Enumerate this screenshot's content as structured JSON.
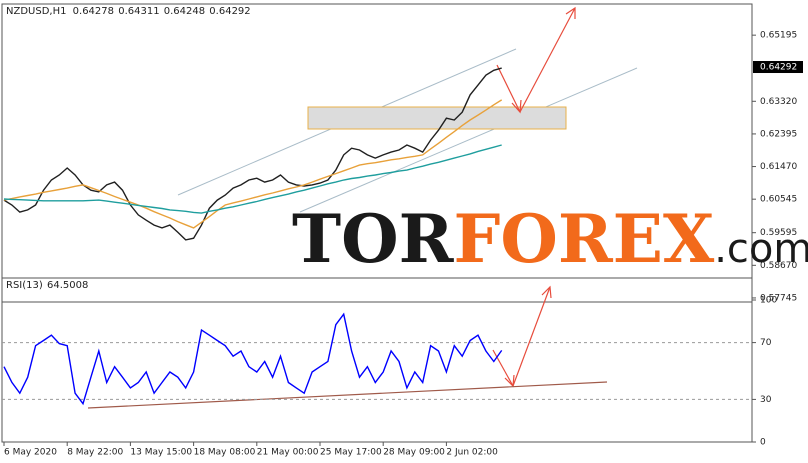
{
  "chart_data": [
    {
      "type": "line",
      "title": "NZDUSD,H1",
      "header_values": [
        0.64278,
        0.64311,
        0.64248,
        0.64292
      ],
      "last_price": 0.64292,
      "watermark": [
        "TOR",
        "FOREX",
        ".com"
      ],
      "categories": [
        "6 May 2020",
        null,
        null,
        null,
        null,
        null,
        null,
        null,
        "8 May 22:00",
        null,
        null,
        null,
        null,
        null,
        null,
        null,
        "13 May 15:00",
        null,
        null,
        null,
        null,
        null,
        null,
        null,
        "18 May 08:00",
        null,
        null,
        null,
        null,
        null,
        null,
        null,
        "21 May 00:00",
        null,
        null,
        null,
        null,
        null,
        null,
        null,
        "25 May 17:00",
        null,
        null,
        null,
        null,
        null,
        null,
        null,
        "28 May 09:00",
        null,
        null,
        null,
        null,
        null,
        null,
        null,
        "2 Jun 02:00",
        null,
        null,
        null,
        null,
        null,
        null,
        null
      ],
      "series": [
        {
          "color": "#202020",
          "values": [
            0.6052,
            0.6038,
            0.6018,
            0.6024,
            0.6038,
            0.608,
            0.6109,
            0.6123,
            0.6143,
            0.6123,
            0.6095,
            0.608,
            0.6075,
            0.6095,
            0.6103,
            0.608,
            0.6038,
            0.601,
            0.5995,
            0.5981,
            0.5973,
            0.5981,
            0.5961,
            0.5939,
            0.5944,
            0.5981,
            0.6029,
            0.6052,
            0.6066,
            0.6086,
            0.6095,
            0.6109,
            0.6114,
            0.6103,
            0.6109,
            0.6123,
            0.6103,
            0.6095,
            0.6092,
            0.6095,
            0.61,
            0.6109,
            0.6137,
            0.618,
            0.6199,
            0.6194,
            0.618,
            0.6171,
            0.618,
            0.6188,
            0.6194,
            0.6208,
            0.6199,
            0.6188,
            0.6222,
            0.625,
            0.6284,
            0.6279,
            0.6301,
            0.635,
            0.6378,
            0.6406,
            0.642,
            0.6426
          ]
        },
        {
          "color": "#e8a13a",
          "values": [
            0.6052,
            0.6056,
            0.6061,
            0.6065,
            0.6069,
            0.6074,
            0.6078,
            0.6082,
            0.6086,
            0.6091,
            0.6095,
            0.6087,
            0.6079,
            0.6071,
            0.6062,
            0.6054,
            0.6046,
            0.6038,
            0.6029,
            0.6019,
            0.601,
            0.6001,
            0.5991,
            0.5982,
            0.5973,
            0.5989,
            0.6005,
            0.6022,
            0.6038,
            0.6044,
            0.6049,
            0.6055,
            0.6061,
            0.6067,
            0.6072,
            0.6078,
            0.6084,
            0.6089,
            0.6095,
            0.6103,
            0.6111,
            0.6119,
            0.6127,
            0.6135,
            0.6143,
            0.6151,
            0.6155,
            0.6158,
            0.6162,
            0.6166,
            0.6169,
            0.6173,
            0.6176,
            0.618,
            0.6197,
            0.6213,
            0.623,
            0.6246,
            0.6263,
            0.6279,
            0.6293,
            0.6307,
            0.6322,
            0.6336
          ]
        },
        {
          "color": "#1f9e9e",
          "values": [
            0.6055,
            0.6054,
            0.6053,
            0.6052,
            0.6051,
            0.605,
            0.605,
            0.605,
            0.605,
            0.605,
            0.605,
            0.6051,
            0.6052,
            0.6049,
            0.6046,
            0.6043,
            0.604,
            0.6037,
            0.6034,
            0.6031,
            0.6028,
            0.6024,
            0.6022,
            0.602,
            0.6017,
            0.6015,
            0.602,
            0.6024,
            0.6029,
            0.6033,
            0.6038,
            0.6043,
            0.6048,
            0.6054,
            0.6059,
            0.6064,
            0.6069,
            0.6075,
            0.608,
            0.6086,
            0.6092,
            0.6098,
            0.6103,
            0.6109,
            0.6113,
            0.6116,
            0.612,
            0.6123,
            0.6127,
            0.613,
            0.6134,
            0.6137,
            0.6143,
            0.6148,
            0.6154,
            0.6159,
            0.6165,
            0.6171,
            0.6177,
            0.6183,
            0.619,
            0.6196,
            0.6202,
            0.6208
          ]
        }
      ],
      "ylim": [
        0.5763,
        0.6605
      ],
      "yticks": [
        0.57745,
        {
          "value": 0.5867,
          "label": "0.58670"
        },
        0.59595,
        0.60545,
        {
          "value": 0.6147,
          "label": "0.61470"
        },
        0.62395,
        {
          "value": 0.6332,
          "label": "0.63320"
        },
        0.65195
      ]
    },
    {
      "type": "line",
      "title": "RSI(13)",
      "header_values": [
        64.5008
      ],
      "series": [
        {
          "color": "#0000ff",
          "values": [
            53,
            42,
            34.4,
            45.6,
            67.8,
            71.5,
            75.2,
            69.3,
            67.8,
            34.4,
            27,
            45.6,
            64.1,
            41.9,
            53,
            45.6,
            38.1,
            41.9,
            49.3,
            34.4,
            41.9,
            49.3,
            45.6,
            38.1,
            49.3,
            78.9,
            75.2,
            71.5,
            67.8,
            60.4,
            64.1,
            53,
            49.3,
            56.7,
            45.6,
            60.4,
            41.9,
            38.1,
            34.4,
            49.3,
            53,
            56.7,
            82.6,
            90,
            64.1,
            45.6,
            53,
            41.9,
            49.3,
            64.1,
            56.7,
            38.1,
            49.3,
            41.9,
            67.8,
            64.1,
            49.3,
            67.8,
            60.4,
            71.5,
            75.2,
            64.1,
            56.7,
            64.5
          ]
        }
      ],
      "ylim": [
        0,
        100
      ],
      "yticks": [
        0,
        30,
        70,
        100
      ]
    }
  ]
}
